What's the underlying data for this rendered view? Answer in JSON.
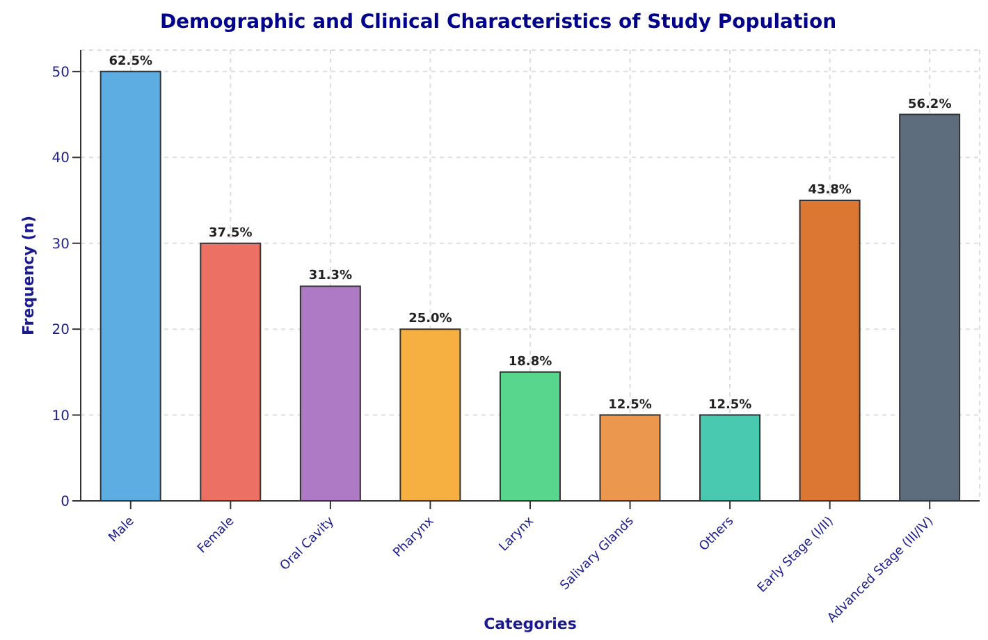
{
  "chart_data": {
    "type": "bar",
    "title": "Demographic and Clinical Characteristics of Study Population",
    "xlabel": "Categories",
    "ylabel": "Frequency (n)",
    "categories": [
      "Male",
      "Female",
      "Oral Cavity",
      "Pharynx",
      "Larynx",
      "Salivary Glands",
      "Others",
      "Early Stage (I/II)",
      "Advanced Stage (III/IV)"
    ],
    "values": [
      50,
      30,
      25,
      20,
      15,
      10,
      10,
      35,
      45
    ],
    "colors": [
      "#5dade2",
      "#ec7063",
      "#af7ac5",
      "#f5b041",
      "#58d68d",
      "#eb984e",
      "#48c9b0",
      "#dc7633",
      "#5d6d7e"
    ],
    "annotations": [
      {
        "text": "62.5%",
        "x": "Male",
        "y": 50
      },
      {
        "text": "37.5%",
        "x": "Female",
        "y": 30
      },
      {
        "text": "31.3%",
        "x": "Oral Cavity",
        "y": 25
      },
      {
        "text": "25.0%",
        "x": "Pharynx",
        "y": 20
      },
      {
        "text": "18.8%",
        "x": "Larynx",
        "y": 15
      },
      {
        "text": "12.5%",
        "x": "Salivary Glands",
        "y": 10
      },
      {
        "text": "12.5%",
        "x": "Others",
        "y": 10
      },
      {
        "text": "43.8%",
        "x": "Early Stage (I/II)",
        "y": 35
      },
      {
        "text": "56.2%",
        "x": "Advanced Stage (III/IV)",
        "y": 45
      }
    ],
    "ylim": [
      0,
      52.5
    ],
    "yticks": [
      0,
      10,
      20,
      30,
      40,
      50
    ],
    "grid": true
  }
}
